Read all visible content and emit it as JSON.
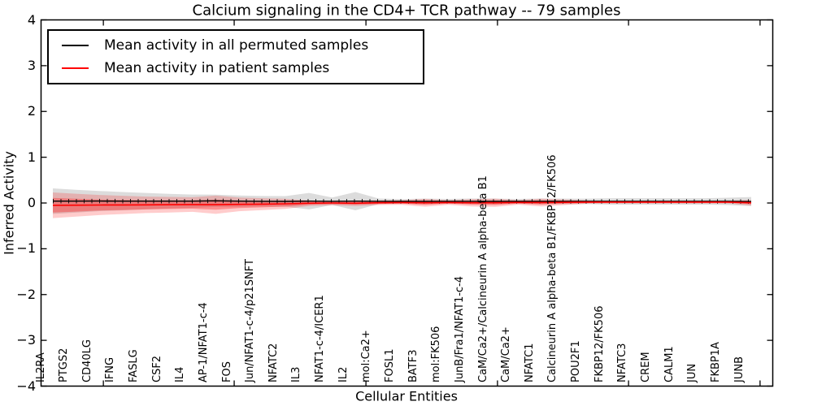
{
  "figure": {
    "title": "Calcium signaling in the CD4+ TCR pathway -- 79 samples",
    "xlabel": "Cellular Entities",
    "ylabel": "Inferred Activity"
  },
  "chart_data": {
    "type": "line",
    "title": "Calcium signaling in the CD4+ TCR pathway -- 79 samples",
    "xlabel": "Cellular Entities",
    "ylabel": "Inferred Activity",
    "ylim": [
      -4,
      4
    ],
    "yticks": [
      4,
      3,
      2,
      1,
      0,
      -1,
      -2,
      -3,
      -4
    ],
    "x_major_ticks": [
      2.17,
      7.79,
      13.45,
      19.1,
      24.73,
      30.38
    ],
    "grid": false,
    "legend_position": "upper left",
    "categories": [
      "IL2RA",
      "PTGS2",
      "CD40LG",
      "IFNG",
      "FASLG",
      "CSF2",
      "IL4",
      "AP-1/NFAT1-c-4",
      "FOS",
      "Jun/NFAT1-c-4/p21SNFT",
      "NFATC2",
      "IL3",
      "NFAT1-c-4/ICER1",
      "IL2",
      "mol:Ca2+",
      "FOSL1",
      "BATF3",
      "mol:FK506",
      "JunB/Fra1/NFAT1-c-4",
      "CaM/Ca2+/Calcineurin A alpha-beta B1",
      "CaM/Ca2+",
      "NFATC1",
      "Calcineurin A alpha-beta B1/FKBP12/FK506",
      "POU2F1",
      "FKBP12/FK506",
      "NFATC3",
      "CREM",
      "CALM1",
      "JUN",
      "FKBP1A",
      "JUNB"
    ],
    "series": [
      {
        "name": "Mean activity in all permuted samples",
        "color": "#000000",
        "values": [
          0.04,
          0.04,
          0.042,
          0.04,
          0.04,
          0.04,
          0.04,
          0.048,
          0.04,
          0.038,
          0.036,
          0.04,
          0.038,
          0.04,
          0.038,
          0.036,
          0.036,
          0.038,
          0.038,
          0.036,
          0.038,
          0.038,
          0.036,
          0.035,
          0.035,
          0.035,
          0.035,
          0.035,
          0.035,
          0.035,
          0.032
        ]
      },
      {
        "name": "Mean activity in patient samples",
        "color": "#ff0000",
        "values": [
          -0.05,
          -0.048,
          -0.045,
          -0.042,
          -0.04,
          -0.037,
          -0.034,
          -0.038,
          -0.03,
          -0.025,
          -0.018,
          -0.005,
          0,
          -0.005,
          0.005,
          0.01,
          0.005,
          0.01,
          0.005,
          0.005,
          0.012,
          0.01,
          0.015,
          0.02,
          0.02,
          0.02,
          0.02,
          0.02,
          0.02,
          0.02,
          0.005
        ]
      }
    ],
    "bands": [
      {
        "name": "permuted-samples-std-band",
        "color": "#808080",
        "opacity": 0.28,
        "series": 0,
        "halfwidths": [
          0.28,
          0.25,
          0.22,
          0.2,
          0.18,
          0.16,
          0.145,
          0.135,
          0.125,
          0.115,
          0.115,
          0.18,
          0.08,
          0.2,
          0.06,
          0.05,
          0.06,
          0.05,
          0.06,
          0.06,
          0.05,
          0.06,
          0.06,
          0.06,
          0.07,
          0.07,
          0.07,
          0.07,
          0.07,
          0.08,
          0.1
        ]
      },
      {
        "name": "patient-samples-std-band-outer",
        "color": "#ff0000",
        "opacity": 0.2,
        "series": 1,
        "halfwidths": [
          0.28,
          0.25,
          0.22,
          0.2,
          0.18,
          0.17,
          0.16,
          0.2,
          0.15,
          0.13,
          0.11,
          0.06,
          0.05,
          0.06,
          0.05,
          0.05,
          0.085,
          0.05,
          0.08,
          0.09,
          0.05,
          0.085,
          0.06,
          0.035,
          0.03,
          0.03,
          0.03,
          0.03,
          0.03,
          0.03,
          0.06
        ]
      },
      {
        "name": "patient-samples-std-band-inner",
        "color": "#ff0000",
        "opacity": 0.3,
        "series": 1,
        "halfwidths": [
          0.16,
          0.14,
          0.12,
          0.11,
          0.1,
          0.095,
          0.09,
          0.11,
          0.08,
          0.07,
          0.06,
          0.03,
          0.025,
          0.03,
          0.025,
          0.025,
          0.045,
          0.025,
          0.04,
          0.05,
          0.025,
          0.045,
          0.03,
          0.02,
          0.015,
          0.015,
          0.015,
          0.015,
          0.015,
          0.015,
          0.03
        ]
      }
    ]
  }
}
